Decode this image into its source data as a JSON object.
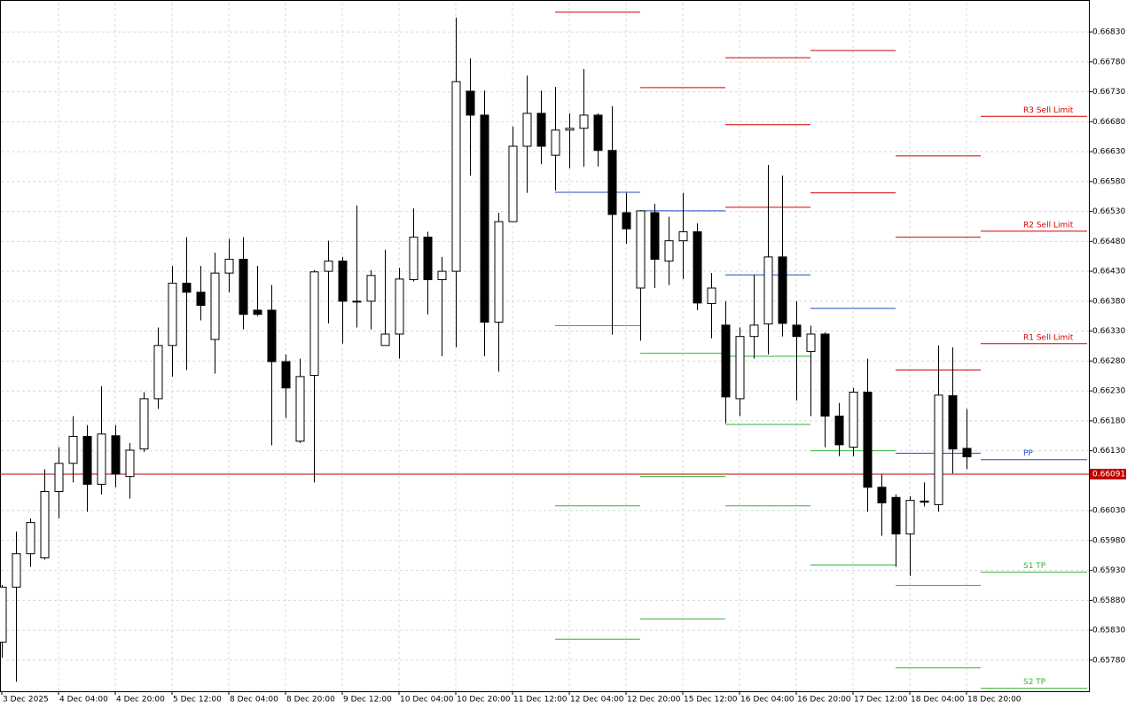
{
  "chart_data": {
    "type": "candlestick",
    "categories": [
      "3 Dec 2025",
      null,
      null,
      null,
      "4 Dec 04:00",
      null,
      null,
      null,
      "4 Dec 20:00",
      null,
      null,
      null,
      "5 Dec 12:00",
      null,
      null,
      null,
      "8 Dec 04:00",
      null,
      null,
      null,
      "8 Dec 20:00",
      null,
      null,
      null,
      "9 Dec 12:00",
      null,
      null,
      null,
      "10 Dec 04:00",
      null,
      null,
      null,
      "10 Dec 20:00",
      null,
      null,
      null,
      "11 Dec 12:00",
      null,
      null,
      null,
      "12 Dec 04:00",
      null,
      null,
      null,
      "12 Dec 20:00",
      null,
      null,
      null,
      "15 Dec 12:00",
      null,
      null,
      null,
      "16 Dec 04:00",
      null,
      null,
      null,
      "16 Dec 20:00",
      null,
      null,
      null,
      "17 Dec 12:00",
      null,
      null,
      null,
      "18 Dec 04:00",
      null,
      null,
      null,
      "18 Dec 20:00"
    ],
    "open": [
      0.6581,
      0.65902,
      0.65958,
      0.65951,
      0.66062,
      0.66109,
      0.66154,
      0.66074,
      0.66155,
      0.66087,
      0.66133,
      0.66217,
      0.66306,
      0.6641,
      0.66395,
      0.66316,
      0.66427,
      0.6645,
      0.66365,
      0.66365,
      0.66279,
      0.66146,
      0.66256,
      0.6643,
      0.66447,
      0.6638,
      0.6638,
      0.66306,
      0.66325,
      0.66416,
      0.66487,
      0.66416,
      0.6643,
      0.66731,
      0.66691,
      0.66345,
      0.66513,
      0.66639,
      0.66694,
      0.66624,
      0.66666,
      0.66669,
      0.66691,
      0.66632,
      0.66528,
      0.66402,
      0.66528,
      0.66447,
      0.66481,
      0.66496,
      0.66376,
      0.6634,
      0.66217,
      0.66321,
      0.66342,
      0.66454,
      0.6634,
      0.66296,
      0.66325,
      0.66188,
      0.66136,
      0.66228,
      0.66069,
      0.66052,
      0.65991,
      0.66046,
      0.6604,
      0.66222,
      0.66134
    ],
    "high": [
      0.65906,
      0.65995,
      0.66017,
      0.66099,
      0.66136,
      0.66188,
      0.66173,
      0.66238,
      0.66173,
      0.66143,
      0.66228,
      0.66336,
      0.66439,
      0.66487,
      0.66439,
      0.66461,
      0.66484,
      0.66487,
      0.66439,
      0.66407,
      0.66291,
      0.66284,
      0.66432,
      0.66481,
      0.66454,
      0.6654,
      0.66432,
      0.66466,
      0.66436,
      0.66535,
      0.66496,
      0.66454,
      0.66854,
      0.66786,
      0.66732,
      0.66528,
      0.66672,
      0.66757,
      0.66732,
      0.66738,
      0.66694,
      0.66768,
      0.66694,
      0.66706,
      0.66561,
      0.66532,
      0.66543,
      0.66521,
      0.66561,
      0.6651,
      0.66427,
      0.6638,
      0.66336,
      0.66424,
      0.66608,
      0.6659,
      0.6638,
      0.66339,
      0.66328,
      0.6621,
      0.66235,
      0.66284,
      0.66091,
      0.66057,
      0.66054,
      0.66077,
      0.66306,
      0.66303,
      0.662
    ],
    "low": [
      0.65784,
      0.65744,
      0.65936,
      0.65948,
      0.66017,
      0.66077,
      0.66028,
      0.66057,
      0.66069,
      0.6605,
      0.66128,
      0.662,
      0.66254,
      0.66265,
      0.66348,
      0.66259,
      0.66395,
      0.66333,
      0.66355,
      0.66139,
      0.66185,
      0.66143,
      0.66077,
      0.66343,
      0.66309,
      0.66336,
      0.66333,
      0.66306,
      0.66284,
      0.66413,
      0.66358,
      0.66288,
      0.66303,
      0.6659,
      0.66288,
      0.66262,
      0.66513,
      0.66561,
      0.66609,
      0.66565,
      0.66602,
      0.66605,
      0.66605,
      0.66324,
      0.66476,
      0.66314,
      0.66402,
      0.66407,
      0.66417,
      0.66365,
      0.66318,
      0.66176,
      0.66188,
      0.66284,
      0.66291,
      0.66321,
      0.66214,
      0.66188,
      0.66136,
      0.66121,
      0.66121,
      0.66028,
      0.65988,
      0.65936,
      0.65921,
      0.66037,
      0.66028,
      0.66092,
      0.66099
    ],
    "close": [
      0.65902,
      0.65958,
      0.6601,
      0.66062,
      0.66109,
      0.66154,
      0.66074,
      0.66158,
      0.66091,
      0.66131,
      0.66217,
      0.66306,
      0.6641,
      0.66395,
      0.66373,
      0.66427,
      0.6645,
      0.66358,
      0.66358,
      0.66279,
      0.66235,
      0.66254,
      0.66429,
      0.66447,
      0.6638,
      0.66379,
      0.66423,
      0.66325,
      0.66417,
      0.66487,
      0.66416,
      0.6643,
      0.66747,
      0.66691,
      0.66345,
      0.66513,
      0.66639,
      0.66694,
      0.66639,
      0.66666,
      0.66669,
      0.66691,
      0.66632,
      0.66525,
      0.66501,
      0.66531,
      0.6645,
      0.66481,
      0.66496,
      0.66377,
      0.66402,
      0.6622,
      0.66321,
      0.6634,
      0.66454,
      0.66343,
      0.66321,
      0.66325,
      0.66188,
      0.6614,
      0.66228,
      0.66069,
      0.66043,
      0.65991,
      0.66047,
      0.66044,
      0.66223,
      0.66133,
      0.6612
    ],
    "xlim": [
      -0.125,
      76.625
    ],
    "ylim": [
      0.65728,
      0.66879
    ],
    "yticks": [
      {
        "value": 0.6683,
        "label": "0.66830"
      },
      {
        "value": 0.6678,
        "label": "0.66780"
      },
      {
        "value": 0.6673,
        "label": "0.66730"
      },
      {
        "value": 0.6668,
        "label": "0.66680"
      },
      {
        "value": 0.6663,
        "label": "0.66630"
      },
      {
        "value": 0.6658,
        "label": "0.66580"
      },
      {
        "value": 0.6653,
        "label": "0.66530"
      },
      {
        "value": 0.6648,
        "label": "0.66480"
      },
      {
        "value": 0.6643,
        "label": "0.66430"
      },
      {
        "value": 0.6638,
        "label": "0.66380"
      },
      {
        "value": 0.6633,
        "label": "0.66330"
      },
      {
        "value": 0.6628,
        "label": "0.66280"
      },
      {
        "value": 0.6623,
        "label": "0.66230"
      },
      {
        "value": 0.6618,
        "label": "0.66180"
      },
      {
        "value": 0.6613,
        "label": "0.66130"
      },
      {
        "value": 0.6603,
        "label": "0.66030"
      },
      {
        "value": 0.6598,
        "label": "0.65980"
      },
      {
        "value": 0.6593,
        "label": "0.65930"
      },
      {
        "value": 0.6588,
        "label": "0.65880"
      },
      {
        "value": 0.6583,
        "label": "0.65830"
      },
      {
        "value": 0.6578,
        "label": "0.65780"
      }
    ],
    "grid": true,
    "price": 0.66091,
    "price_color": "#c00000",
    "pivots": [
      {
        "from": 39,
        "to": 45,
        "levels": [
          {
            "value": 0.66863,
            "color": "#d40000"
          },
          {
            "value": 0.66562,
            "color": "#1c4fc4"
          },
          {
            "value": 0.66339,
            "color": "#32b432"
          },
          {
            "value": 0.66038,
            "color": "#32b432"
          },
          {
            "value": 0.65815,
            "color": "#32b432"
          }
        ]
      },
      {
        "from": 45,
        "to": 51,
        "levels": [
          {
            "value": 0.66737,
            "color": "#d40000"
          },
          {
            "value": 0.66531,
            "color": "#1c4fc4"
          },
          {
            "value": 0.66293,
            "color": "#32b432"
          },
          {
            "value": 0.66087,
            "color": "#32b432"
          },
          {
            "value": 0.65849,
            "color": "#32b432"
          }
        ]
      },
      {
        "from": 51,
        "to": 57,
        "levels": [
          {
            "value": 0.66787,
            "color": "#d40000"
          },
          {
            "value": 0.66675,
            "color": "#d40000"
          },
          {
            "value": 0.66537,
            "color": "#d40000"
          },
          {
            "value": 0.66424,
            "color": "#1c4fc4"
          },
          {
            "value": 0.66288,
            "color": "#32b432"
          },
          {
            "value": 0.66174,
            "color": "#32b432"
          },
          {
            "value": 0.66038,
            "color": "#32b432"
          }
        ]
      },
      {
        "from": 57,
        "to": 63,
        "levels": [
          {
            "value": 0.66799,
            "color": "#d40000"
          },
          {
            "value": 0.66561,
            "color": "#d40000"
          },
          {
            "value": 0.66368,
            "color": "#1c4fc4"
          },
          {
            "value": 0.6613,
            "color": "#32b432"
          },
          {
            "value": 0.65939,
            "color": "#32b432"
          }
        ]
      },
      {
        "from": 63,
        "to": 69,
        "levels": [
          {
            "value": 0.66623,
            "color": "#d40000"
          },
          {
            "value": 0.66487,
            "color": "#d40000"
          },
          {
            "value": 0.66265,
            "color": "#d40000"
          },
          {
            "value": 0.66126,
            "color": "#1c4fc4"
          },
          {
            "value": 0.65905,
            "color": "#32b432"
          },
          {
            "value": 0.65767,
            "color": "#32b432"
          }
        ]
      },
      {
        "from": 69,
        "to": 76.5,
        "levels": [
          {
            "value": 0.66689,
            "color": "#d40000",
            "label": "R3 Sell Limit"
          },
          {
            "value": 0.66497,
            "color": "#d40000",
            "label": "R2 Sell Limit"
          },
          {
            "value": 0.66309,
            "color": "#d40000",
            "label": "R1 Sell Limit"
          },
          {
            "value": 0.66115,
            "color": "#1c4fc4",
            "label": "PP"
          },
          {
            "value": 0.65927,
            "color": "#32b432",
            "label": "S1 TP"
          },
          {
            "value": 0.65733,
            "color": "#32b432",
            "label": "S2 TP"
          }
        ]
      }
    ]
  }
}
